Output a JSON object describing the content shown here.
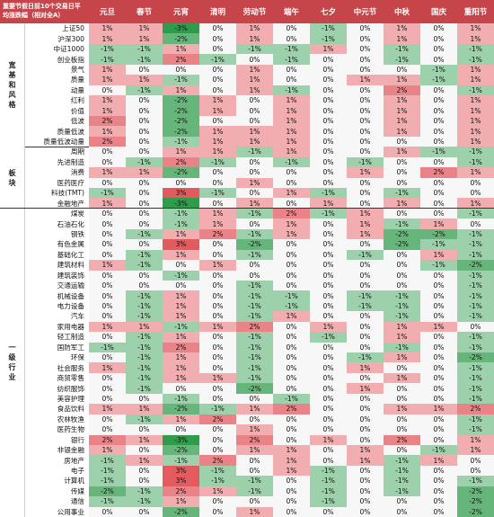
{
  "chart_data": {
    "type": "heatmap",
    "title": "重要节假日前10个交易日平均涨跌幅（相对全A）",
    "columns": [
      "元旦",
      "春节",
      "元宵",
      "清明",
      "劳动节",
      "端午",
      "七夕",
      "中元节",
      "中秋",
      "国庆",
      "重阳节"
    ],
    "groups": [
      {
        "name": "宽基和风格",
        "rows": [
          {
            "label": "上证50",
            "values": [
              1,
              1,
              -3,
              0,
              1,
              0,
              -1,
              0,
              1,
              0,
              1
            ]
          },
          {
            "label": "沪深300",
            "values": [
              1,
              1,
              -2,
              0,
              1,
              0,
              -1,
              0,
              1,
              0,
              1
            ]
          },
          {
            "label": "中证1000",
            "values": [
              -1,
              -1,
              1,
              0,
              -1,
              -1,
              1,
              0,
              -1,
              0,
              -1
            ]
          },
          {
            "label": "创业板指",
            "values": [
              -1,
              -1,
              2,
              -1,
              0,
              -1,
              0,
              0,
              -1,
              0,
              -1
            ]
          },
          {
            "label": "景气",
            "values": [
              1,
              0,
              0,
              0,
              1,
              0,
              0,
              0,
              0,
              -1,
              1
            ]
          },
          {
            "label": "质量",
            "values": [
              1,
              1,
              -1,
              0,
              1,
              0,
              0,
              1,
              1,
              -1,
              1
            ]
          },
          {
            "label": "动量",
            "values": [
              0,
              -1,
              1,
              0,
              1,
              -1,
              0,
              0,
              2,
              0,
              -1
            ]
          },
          {
            "label": "红利",
            "values": [
              1,
              0,
              -2,
              1,
              0,
              1,
              0,
              0,
              1,
              0,
              1
            ]
          },
          {
            "label": "价值",
            "values": [
              1,
              0,
              -2,
              1,
              0,
              1,
              0,
              0,
              1,
              0,
              1
            ]
          },
          {
            "label": "低波",
            "values": [
              2,
              0,
              -2,
              0,
              0,
              1,
              0,
              0,
              1,
              0,
              1
            ]
          },
          {
            "label": "质量低波",
            "values": [
              1,
              0,
              -2,
              1,
              1,
              1,
              0,
              0,
              1,
              0,
              1
            ]
          },
          {
            "label": "质量低波动量",
            "values": [
              2,
              0,
              -1,
              1,
              1,
              1,
              0,
              0,
              0,
              0,
              1
            ]
          }
        ]
      },
      {
        "name": "板块",
        "rows": [
          {
            "label": "周期",
            "values": [
              0,
              0,
              1,
              1,
              -1,
              1,
              0,
              0,
              1,
              -1,
              -1
            ]
          },
          {
            "label": "先进制造",
            "values": [
              0,
              -1,
              2,
              -1,
              0,
              -1,
              0,
              -1,
              0,
              0,
              -1
            ]
          },
          {
            "label": "消费",
            "values": [
              1,
              1,
              -2,
              0,
              0,
              0,
              0,
              1,
              0,
              2,
              1
            ]
          },
          {
            "label": "医药医疗",
            "values": [
              0,
              0,
              0,
              0,
              1,
              0,
              0,
              0,
              0,
              0,
              0
            ]
          },
          {
            "label": "科技(TMT)",
            "values": [
              -1,
              0,
              3,
              -1,
              0,
              1,
              -1,
              0,
              -1,
              0,
              0
            ]
          },
          {
            "label": "金融地产",
            "values": [
              1,
              0,
              -3,
              0,
              1,
              0,
              1,
              0,
              1,
              0,
              1
            ]
          }
        ]
      },
      {
        "name": "一级行业",
        "rows": [
          {
            "label": "煤炭",
            "values": [
              0,
              0,
              -1,
              1,
              -1,
              2,
              -1,
              1,
              0,
              0,
              -1
            ]
          },
          {
            "label": "石油石化",
            "values": [
              0,
              0,
              -1,
              1,
              0,
              1,
              0,
              1,
              -1,
              1,
              0
            ]
          },
          {
            "label": "钢铁",
            "values": [
              0,
              -1,
              1,
              2,
              -1,
              1,
              0,
              1,
              -2,
              -2,
              -1
            ]
          },
          {
            "label": "有色金属",
            "values": [
              0,
              0,
              3,
              0,
              -2,
              0,
              0,
              0,
              -2,
              -1,
              -1
            ]
          },
          {
            "label": "基础化工",
            "values": [
              0,
              -1,
              1,
              0,
              -1,
              0,
              0,
              -1,
              0,
              1,
              -1
            ]
          },
          {
            "label": "建筑材料",
            "values": [
              1,
              -1,
              0,
              1,
              0,
              0,
              0,
              0,
              0,
              -1,
              -2
            ]
          },
          {
            "label": "建筑装饰",
            "values": [
              0,
              0,
              -1,
              0,
              0,
              0,
              0,
              0,
              0,
              0,
              -1
            ]
          },
          {
            "label": "交通运输",
            "values": [
              0,
              0,
              0,
              0,
              -1,
              0,
              0,
              0,
              0,
              0,
              -1
            ]
          },
          {
            "label": "机械设备",
            "values": [
              0,
              -1,
              1,
              0,
              -1,
              -1,
              0,
              -1,
              -1,
              0,
              -1
            ]
          },
          {
            "label": "电力设备",
            "values": [
              0,
              -1,
              1,
              0,
              -1,
              -1,
              0,
              -1,
              -1,
              0,
              -1
            ]
          },
          {
            "label": "汽车",
            "values": [
              0,
              -1,
              1,
              0,
              -1,
              1,
              0,
              0,
              -1,
              0,
              -1
            ]
          },
          {
            "label": "家用电器",
            "values": [
              1,
              1,
              -1,
              1,
              2,
              0,
              1,
              0,
              1,
              1,
              0
            ]
          },
          {
            "label": "轻工制造",
            "values": [
              0,
              -1,
              1,
              0,
              -1,
              0,
              -1,
              0,
              1,
              0,
              -1
            ]
          },
          {
            "label": "国防军工",
            "values": [
              -1,
              -1,
              2,
              0,
              -1,
              0,
              0,
              0,
              -1,
              0,
              -1
            ]
          },
          {
            "label": "环保",
            "values": [
              0,
              -1,
              1,
              0,
              -1,
              0,
              0,
              -1,
              1,
              0,
              -2
            ]
          },
          {
            "label": "社会服务",
            "values": [
              1,
              -1,
              1,
              0,
              -1,
              0,
              0,
              1,
              0,
              0,
              -1
            ]
          },
          {
            "label": "商贸零售",
            "values": [
              0,
              -1,
              1,
              1,
              -1,
              0,
              0,
              0,
              1,
              0,
              -1
            ]
          },
          {
            "label": "纺织服饰",
            "values": [
              0,
              -1,
              0,
              0,
              -2,
              0,
              0,
              1,
              0,
              0,
              -1
            ]
          },
          {
            "label": "美容护理",
            "values": [
              0,
              0,
              -1,
              0,
              0,
              -1,
              0,
              0,
              0,
              0,
              -1
            ]
          },
          {
            "label": "食品饮料",
            "values": [
              1,
              1,
              -2,
              -1,
              1,
              2,
              0,
              0,
              1,
              1,
              2
            ]
          },
          {
            "label": "农林牧渔",
            "values": [
              0,
              -1,
              1,
              2,
              0,
              0,
              0,
              0,
              0,
              0,
              -1
            ]
          },
          {
            "label": "医药生物",
            "values": [
              0,
              0,
              0,
              0,
              1,
              0,
              0,
              0,
              0,
              0,
              -1
            ]
          },
          {
            "label": "银行",
            "values": [
              2,
              1,
              -3,
              0,
              2,
              0,
              1,
              0,
              2,
              0,
              1
            ]
          },
          {
            "label": "非银金融",
            "values": [
              1,
              0,
              -2,
              0,
              1,
              1,
              0,
              1,
              0,
              -1,
              1
            ]
          },
          {
            "label": "房地产",
            "values": [
              -1,
              1,
              -1,
              2,
              0,
              1,
              0,
              1,
              -1,
              1,
              0
            ]
          },
          {
            "label": "电子",
            "values": [
              -1,
              0,
              3,
              -1,
              0,
              1,
              -1,
              0,
              -1,
              0,
              0
            ]
          },
          {
            "label": "计算机",
            "values": [
              -1,
              0,
              3,
              -1,
              -1,
              0,
              -1,
              0,
              -1,
              0,
              -1
            ]
          },
          {
            "label": "传媒",
            "values": [
              -2,
              -1,
              2,
              1,
              -1,
              0,
              -1,
              0,
              -1,
              0,
              -2
            ]
          },
          {
            "label": "通信",
            "values": [
              -1,
              -1,
              1,
              0,
              0,
              0,
              -1,
              0,
              0,
              0,
              -2
            ]
          },
          {
            "label": "公用事业",
            "values": [
              0,
              0,
              -2,
              0,
              1,
              0,
              0,
              0,
              0,
              0,
              -2
            ]
          }
        ]
      }
    ],
    "color_scale": {
      "positive": "#e35a5f",
      "neutral": "#ffffff",
      "negative": "#2e9c4b",
      "max_abs": 3
    }
  },
  "colors": {
    "header_bg": "#c5454a",
    "header_text": "#ffffff"
  }
}
